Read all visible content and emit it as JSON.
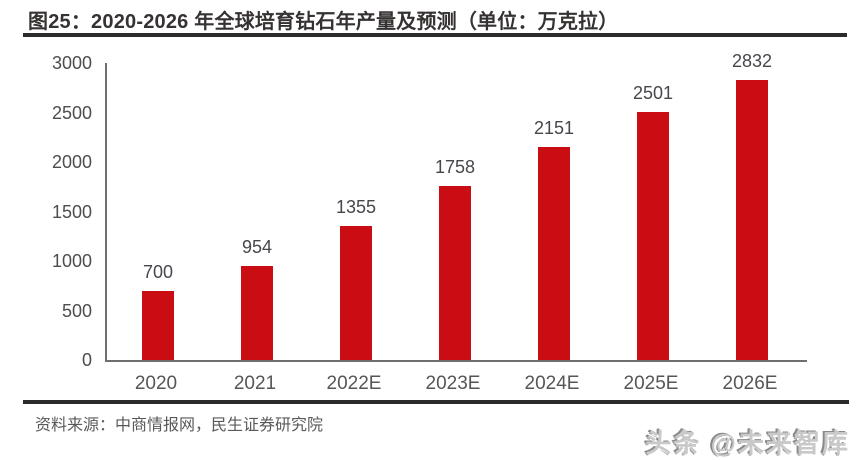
{
  "figure": {
    "title": "图25：2020-2026 年全球培育钻石年产量及预测（单位：万克拉）"
  },
  "chart_data": {
    "type": "bar",
    "title": "2020-2026 年全球培育钻石年产量及预测",
    "unit": "万克拉",
    "categories": [
      "2020",
      "2021",
      "2022E",
      "2023E",
      "2024E",
      "2025E",
      "2026E"
    ],
    "values": [
      700,
      954,
      1355,
      1758,
      2151,
      2501,
      2832
    ],
    "xlabel": "",
    "ylabel": "",
    "ylim": [
      0,
      3000
    ],
    "y_ticks": [
      0,
      500,
      1000,
      1500,
      2000,
      2500,
      3000
    ],
    "grid": false,
    "legend": false,
    "bar_color": "#c90d12",
    "axis_color": "#6e6e6e",
    "tick_label_color": "#4d4d4d",
    "value_label_color": "#45474c"
  },
  "source": {
    "text": "资料来源：中商情报网，民生证券研究院"
  },
  "watermark": {
    "text": "头条 @未来智库"
  }
}
